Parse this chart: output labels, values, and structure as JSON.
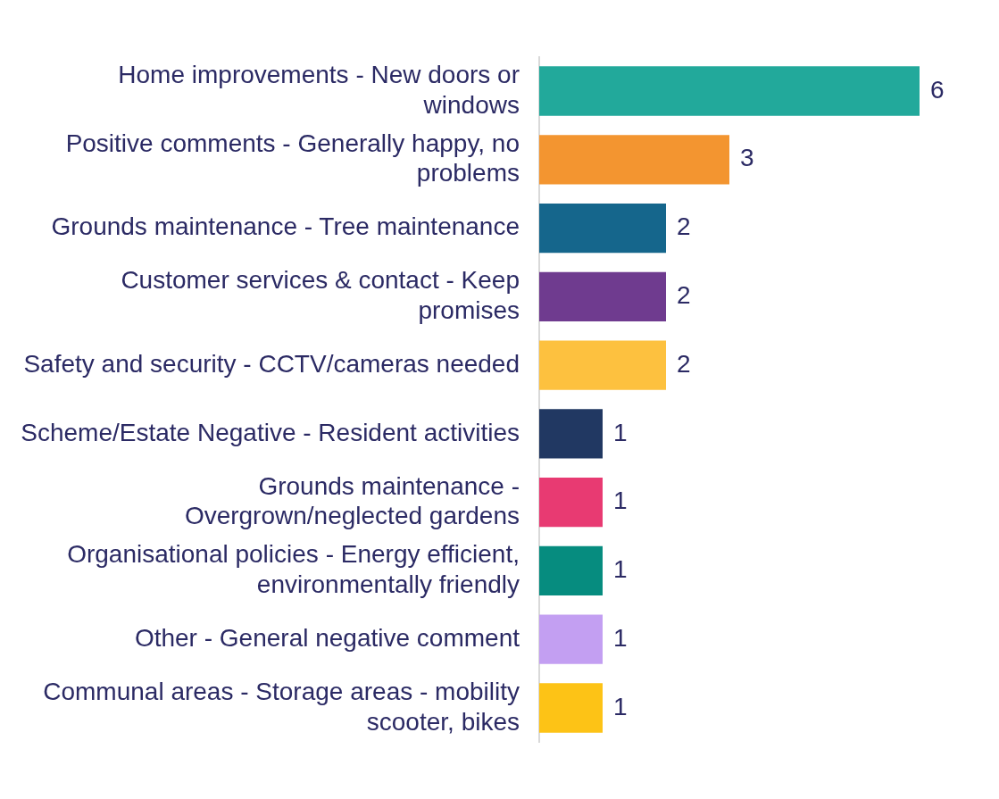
{
  "chart_data": {
    "type": "bar",
    "orientation": "horizontal",
    "categories": [
      "Home improvements - New doors or windows",
      "Positive comments - Generally happy, no problems",
      "Grounds maintenance - Tree maintenance",
      "Customer services & contact - Keep promises",
      "Safety and security - CCTV/cameras needed",
      "Scheme/Estate Negative - Resident activities",
      "Grounds maintenance - Overgrown/neglected gardens",
      "Organisational policies - Energy efficient, environmentally friendly",
      "Other - General negative comment",
      "Communal areas - Storage areas - mobility scooter, bikes"
    ],
    "values": [
      6,
      3,
      2,
      2,
      2,
      1,
      1,
      1,
      1,
      1
    ],
    "colors": [
      "#22a99b",
      "#f39530",
      "#15668c",
      "#6f3b8f",
      "#fdc13f",
      "#213862",
      "#e83a72",
      "#068c7f",
      "#c39ff2",
      "#fdc316"
    ],
    "data_labels": true,
    "legend": false,
    "grid": false
  }
}
